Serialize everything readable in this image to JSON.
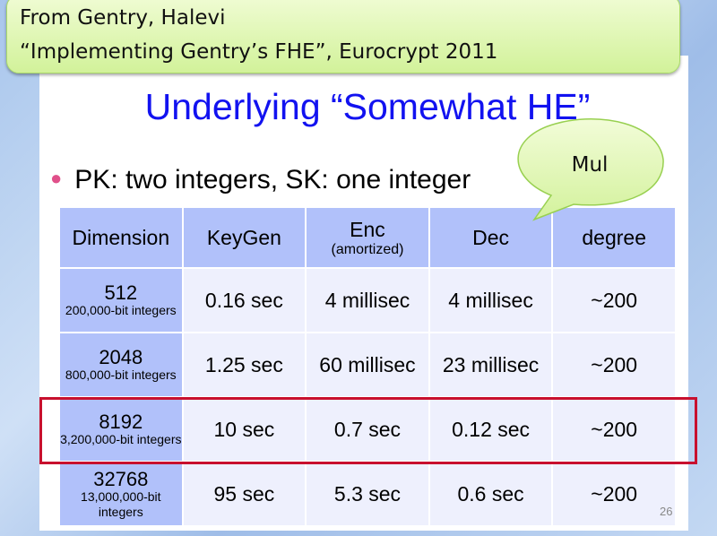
{
  "citation": {
    "line1": "From Gentry, Halevi",
    "line2": "“Implementing Gentry’s FHE”, Eurocrypt 2011"
  },
  "title": "Underlying “Somewhat HE”",
  "bullet": "PK: two integers, SK: one integer",
  "bubble": "Mul",
  "table": {
    "headers": [
      {
        "label": "Dimension"
      },
      {
        "label": "KeyGen"
      },
      {
        "label": "Enc",
        "sub": "(amortized)"
      },
      {
        "label": "Dec"
      },
      {
        "label": "degree"
      }
    ],
    "rows": [
      {
        "dim": "512",
        "dim_sub": "200,000-bit integers",
        "keygen": "0.16 sec",
        "enc": "4 millisec",
        "dec": "4 millisec",
        "degree": "~200"
      },
      {
        "dim": "2048",
        "dim_sub": "800,000-bit integers",
        "keygen": "1.25 sec",
        "enc": "60 millisec",
        "dec": "23 millisec",
        "degree": "~200"
      },
      {
        "dim": "8192",
        "dim_sub": "3,200,000-bit integers",
        "keygen": "10 sec",
        "enc": "0.7 sec",
        "dec": "0.12 sec",
        "degree": "~200"
      },
      {
        "dim": "32768",
        "dim_sub": "13,000,000-bit integers",
        "keygen": "95 sec",
        "enc": "5.3 sec",
        "dec": "0.6 sec",
        "degree": "~200"
      }
    ]
  },
  "highlighted_row": "8192",
  "page_number": "26",
  "colors": {
    "title": "#1212f0",
    "highlight": "#c8102e",
    "header_bg": "#b1c1fa",
    "callout_bg": "#d2f29a"
  }
}
